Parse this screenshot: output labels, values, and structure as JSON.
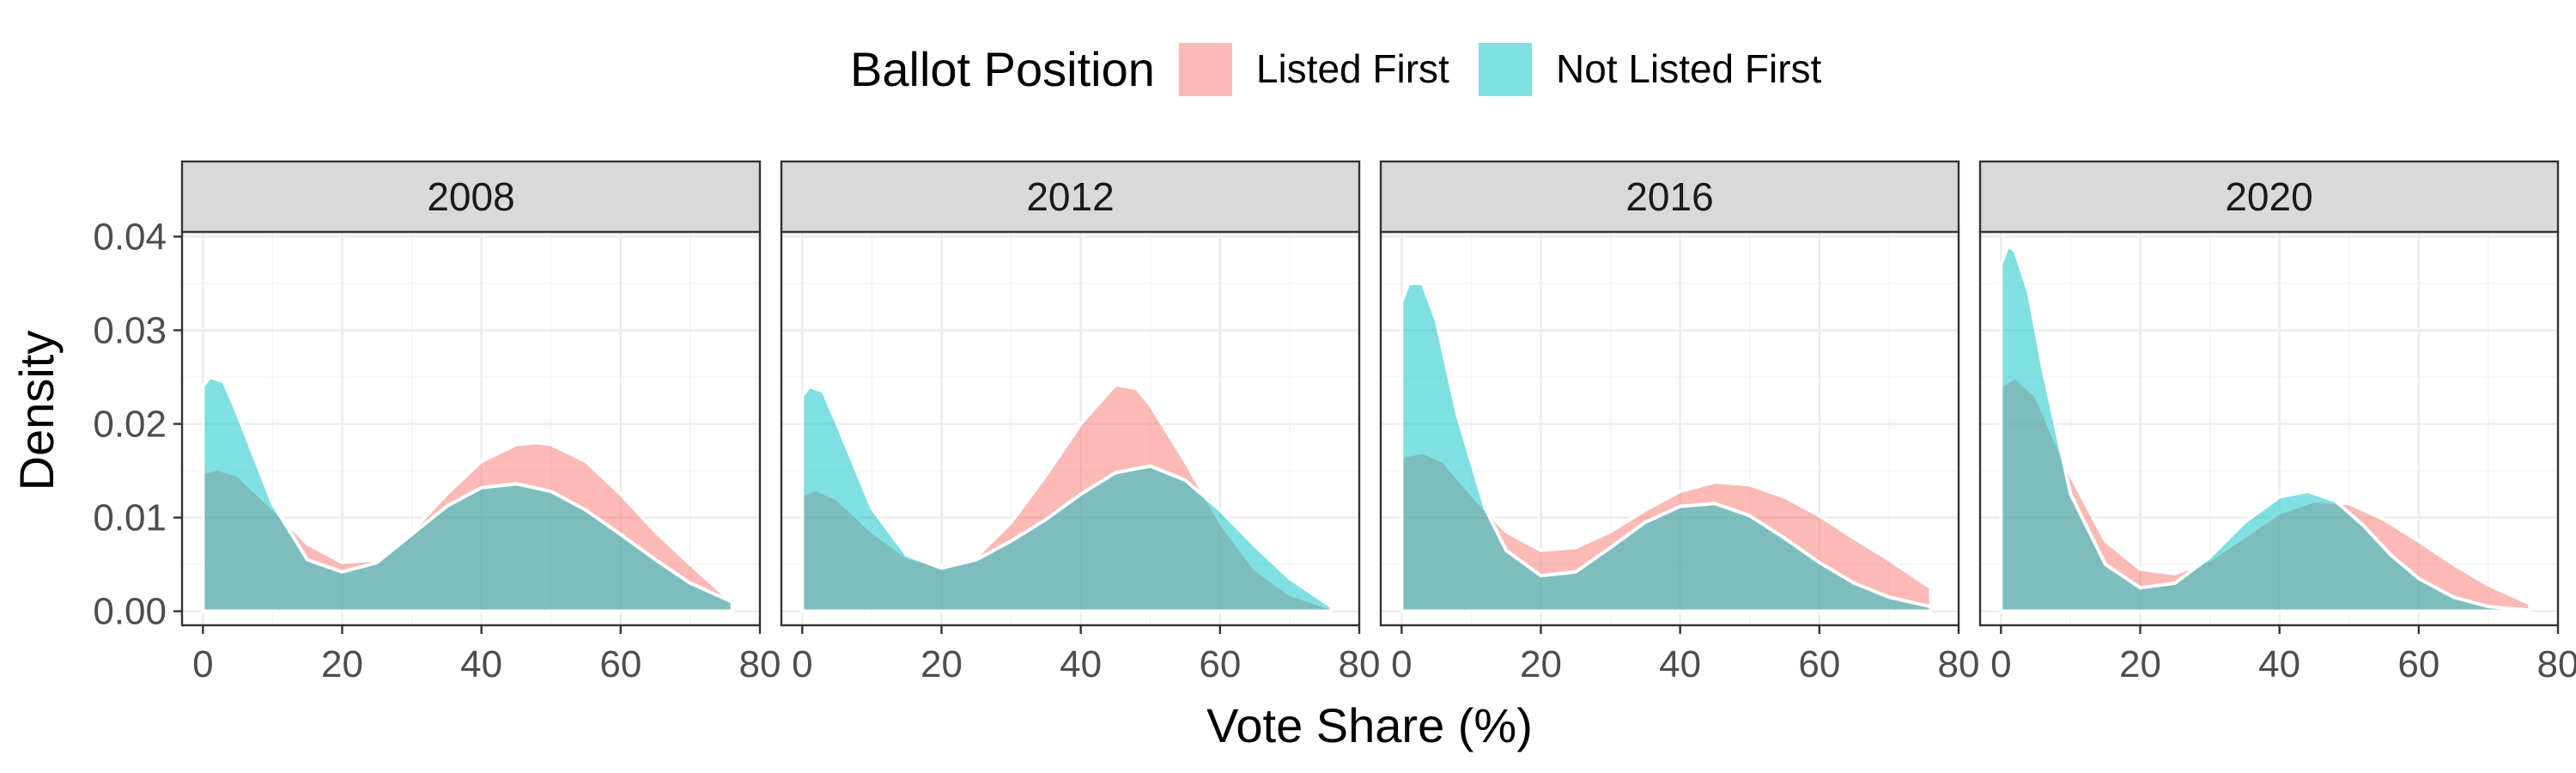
{
  "legend": {
    "title": "Ballot Position",
    "items": [
      {
        "label": "Listed First",
        "color": "#F8766D"
      },
      {
        "label": "Not Listed First",
        "color": "#00BFC4"
      }
    ]
  },
  "chart_data": {
    "type": "area",
    "xlabel": "Vote Share (%)",
    "ylabel": "Density",
    "xlim": [
      -3,
      80
    ],
    "ylim": [
      -0.0015,
      0.0405
    ],
    "xticks": [
      0,
      20,
      40,
      60,
      80
    ],
    "yticks": [
      0.0,
      0.01,
      0.02,
      0.03,
      0.04
    ],
    "ytick_labels": [
      "0.00",
      "0.01",
      "0.02",
      "0.03",
      "0.04"
    ],
    "grid": true,
    "legend_position": "top",
    "series_names": [
      "Listed First",
      "Not Listed First"
    ],
    "panels": [
      {
        "title": "2008",
        "series": [
          {
            "name": "Listed First",
            "x": [
              0,
              2,
              5,
              10,
              15,
              20,
              25,
              30,
              35,
              40,
              45,
              48,
              50,
              55,
              60,
              65,
              70,
              76
            ],
            "y": [
              0.0148,
              0.0152,
              0.0145,
              0.011,
              0.0072,
              0.0052,
              0.0055,
              0.0085,
              0.0125,
              0.016,
              0.0178,
              0.018,
              0.0178,
              0.016,
              0.0125,
              0.0085,
              0.005,
              0.001
            ]
          },
          {
            "name": "Not Listed First",
            "x": [
              0,
              1,
              3,
              5,
              10,
              15,
              20,
              25,
              30,
              35,
              40,
              45,
              50,
              55,
              60,
              65,
              70,
              76
            ],
            "y": [
              0.024,
              0.025,
              0.0245,
              0.021,
              0.0115,
              0.0055,
              0.0042,
              0.0052,
              0.0082,
              0.0112,
              0.0132,
              0.0136,
              0.0128,
              0.0108,
              0.0082,
              0.0055,
              0.003,
              0.001
            ]
          }
        ]
      },
      {
        "title": "2012",
        "series": [
          {
            "name": "Listed First",
            "x": [
              0,
              2,
              5,
              10,
              15,
              20,
              25,
              30,
              35,
              40,
              45,
              48,
              50,
              55,
              60,
              65,
              70,
              76
            ],
            "y": [
              0.0125,
              0.013,
              0.012,
              0.0085,
              0.0058,
              0.0048,
              0.0058,
              0.0095,
              0.0145,
              0.02,
              0.0242,
              0.0238,
              0.022,
              0.016,
              0.0095,
              0.0045,
              0.0018,
              0.0003
            ]
          },
          {
            "name": "Not Listed First",
            "x": [
              0,
              1,
              3,
              5,
              10,
              15,
              20,
              25,
              30,
              35,
              40,
              45,
              50,
              55,
              60,
              65,
              70,
              76
            ],
            "y": [
              0.023,
              0.024,
              0.0235,
              0.02,
              0.011,
              0.006,
              0.0046,
              0.0055,
              0.0075,
              0.0098,
              0.0125,
              0.0148,
              0.0155,
              0.014,
              0.0108,
              0.007,
              0.0035,
              0.0005
            ]
          }
        ]
      },
      {
        "title": "2016",
        "series": [
          {
            "name": "Listed First",
            "x": [
              0,
              3,
              6,
              10,
              15,
              20,
              25,
              30,
              35,
              40,
              45,
              50,
              55,
              60,
              65,
              70,
              76
            ],
            "y": [
              0.0165,
              0.017,
              0.016,
              0.0125,
              0.0085,
              0.0065,
              0.0068,
              0.0085,
              0.0108,
              0.0128,
              0.0138,
              0.0135,
              0.0122,
              0.0102,
              0.0078,
              0.0055,
              0.0025
            ]
          },
          {
            "name": "Not Listed First",
            "x": [
              0,
              1,
              3,
              5,
              8,
              12,
              15,
              20,
              25,
              30,
              35,
              40,
              45,
              50,
              55,
              60,
              65,
              70,
              76
            ],
            "y": [
              0.033,
              0.035,
              0.035,
              0.031,
              0.021,
              0.011,
              0.0065,
              0.0038,
              0.0042,
              0.0068,
              0.0095,
              0.0112,
              0.0115,
              0.0102,
              0.0078,
              0.0052,
              0.003,
              0.0015,
              0.0005
            ]
          }
        ]
      },
      {
        "title": "2020",
        "series": [
          {
            "name": "Listed First",
            "x": [
              0,
              2,
              5,
              10,
              15,
              20,
              25,
              30,
              35,
              40,
              45,
              50,
              55,
              60,
              65,
              70,
              76
            ],
            "y": [
              0.024,
              0.025,
              0.023,
              0.0145,
              0.0075,
              0.0045,
              0.004,
              0.0055,
              0.008,
              0.0105,
              0.0118,
              0.0115,
              0.0098,
              0.0075,
              0.005,
              0.0028,
              0.0008
            ]
          },
          {
            "name": "Not Listed First",
            "x": [
              0,
              1,
              2,
              4,
              6,
              10,
              15,
              20,
              25,
              30,
              35,
              40,
              44,
              48,
              52,
              56,
              60,
              65,
              70,
              76
            ],
            "y": [
              0.037,
              0.039,
              0.0385,
              0.034,
              0.026,
              0.0125,
              0.005,
              0.0025,
              0.003,
              0.0058,
              0.0095,
              0.0122,
              0.0128,
              0.0118,
              0.0092,
              0.006,
              0.0035,
              0.0015,
              0.0005,
              0.0001
            ]
          }
        ]
      }
    ]
  }
}
